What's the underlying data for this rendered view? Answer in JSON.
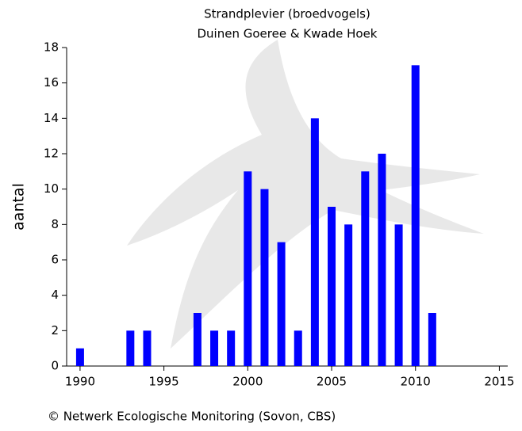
{
  "chart_data": {
    "type": "bar",
    "title": "Strandplevier (broedvogels)",
    "subtitle": "Duinen Goeree & Kwade Hoek",
    "y_label": "aantal",
    "footer": "© Netwerk Ecologische Monitoring (Sovon, CBS)",
    "x": [
      1990,
      1993,
      1994,
      1997,
      1998,
      1999,
      2000,
      2001,
      2002,
      2003,
      2004,
      2005,
      2006,
      2007,
      2008,
      2009,
      2010,
      2011
    ],
    "values": [
      1,
      2,
      2,
      3,
      2,
      2,
      11,
      10,
      7,
      2,
      14,
      9,
      8,
      11,
      12,
      8,
      17,
      3
    ],
    "color": "#0000ff",
    "xlim": [
      1989.2,
      2015.5
    ],
    "xticks": [
      1990,
      1995,
      2000,
      2005,
      2010,
      2015
    ],
    "ylim": [
      0,
      18
    ],
    "yticks": [
      0,
      2,
      4,
      6,
      8,
      10,
      12,
      14,
      16,
      18
    ],
    "grid": false
  }
}
